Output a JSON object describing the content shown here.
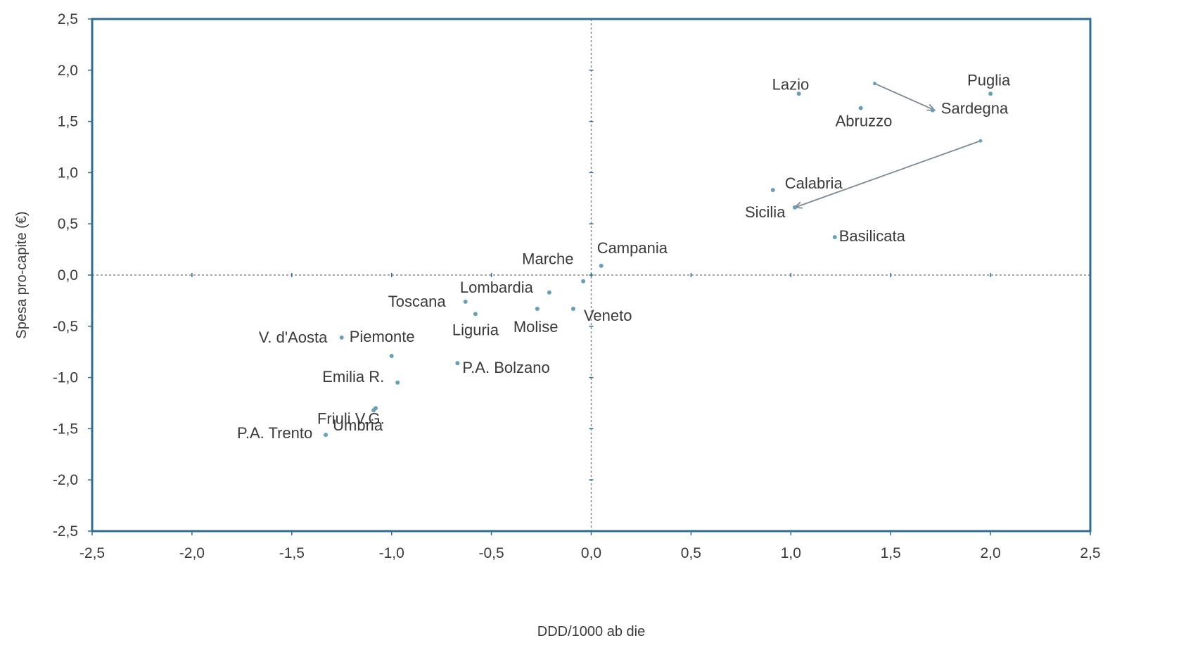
{
  "chart_data": {
    "type": "scatter",
    "title": "",
    "xlabel": "DDD/1000 ab die",
    "ylabel": "Spesa pro-capite (€)",
    "xlim": [
      -2.5,
      2.5
    ],
    "ylim": [
      -2.5,
      2.5
    ],
    "xticks": [
      "-2,5",
      "-2,0",
      "-1,5",
      "-1,0",
      "-0,5",
      "0,0",
      "0,5",
      "1,0",
      "1,5",
      "2,0",
      "2,5"
    ],
    "yticks": [
      "2,5",
      "2,0",
      "1,5",
      "1,0",
      "0,5",
      "0,0",
      "-0,5",
      "-1,0",
      "-1,5",
      "-2,0",
      "-2,5"
    ],
    "grid": false,
    "reference_lines": {
      "x": 0,
      "y": 0,
      "style": "dotted"
    },
    "points": [
      {
        "label": "Lazio",
        "x": 1.04,
        "y": 1.77
      },
      {
        "label": "Puglia",
        "x": 2.0,
        "y": 1.77
      },
      {
        "label": "Sardegna",
        "x": 1.71,
        "y": 1.61
      },
      {
        "label": "Abruzzo",
        "x": 1.35,
        "y": 1.63
      },
      {
        "label": "Calabria",
        "x": 0.91,
        "y": 0.83
      },
      {
        "label": "Sicilia",
        "x": 1.02,
        "y": 0.66
      },
      {
        "label": "Basilicata",
        "x": 1.22,
        "y": 0.37
      },
      {
        "label": "Campania",
        "x": 0.05,
        "y": 0.09
      },
      {
        "label": "Marche",
        "x": -0.04,
        "y": -0.06
      },
      {
        "label": "Lombardia",
        "x": -0.21,
        "y": -0.17
      },
      {
        "label": "Toscana",
        "x": -0.63,
        "y": -0.26
      },
      {
        "label": "Liguria",
        "x": -0.58,
        "y": -0.38
      },
      {
        "label": "Molise",
        "x": -0.27,
        "y": -0.33
      },
      {
        "label": "Veneto",
        "x": -0.09,
        "y": -0.33
      },
      {
        "label": "V. d'Aosta",
        "x": -1.25,
        "y": -0.61
      },
      {
        "label": "Piemonte",
        "x": -1.0,
        "y": -0.79
      },
      {
        "label": "P.A. Bolzano",
        "x": -0.67,
        "y": -0.86
      },
      {
        "label": "Emilia R.",
        "x": -0.97,
        "y": -1.05
      },
      {
        "label": "Friuli V.G.",
        "x": -1.08,
        "y": -1.3
      },
      {
        "label": "Umbria",
        "x": -1.09,
        "y": -1.32
      },
      {
        "label": "P.A. Trento",
        "x": -1.33,
        "y": -1.56
      }
    ],
    "arrows": [
      {
        "from": {
          "x": 1.42,
          "y": 1.87
        },
        "to": {
          "x": 1.72,
          "y": 1.61
        }
      },
      {
        "from": {
          "x": 1.95,
          "y": 1.31
        },
        "to": {
          "x": 1.02,
          "y": 0.66
        }
      }
    ]
  }
}
